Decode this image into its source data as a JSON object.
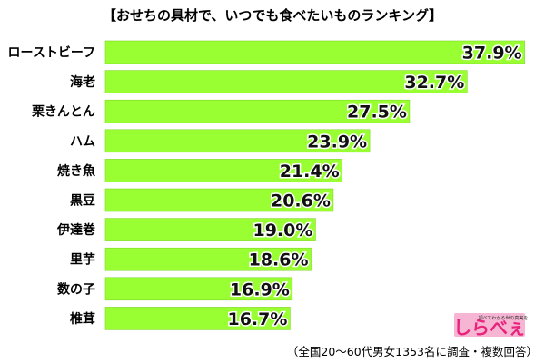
{
  "title": "【おせちの具材で、いつでも食べたいものランキング】",
  "footnote": "（全国20〜60代男女1353名に調査・複数回答）",
  "logo": {
    "text": "しらべぇ",
    "tagline": "調べてわかる世の真実を",
    "color": "#e8237b",
    "background": "#f6b6d3"
  },
  "colors": {
    "bar": "#99ff33",
    "bar_edge": "#7fd826"
  },
  "chart_data": {
    "type": "bar",
    "orientation": "horizontal",
    "title": "【おせちの具材で、いつでも食べたいものランキング】",
    "categories": [
      "ローストビーフ",
      "海老",
      "栗きんとん",
      "ハム",
      "焼き魚",
      "黒豆",
      "伊達巻",
      "里芋",
      "数の子",
      "椎茸"
    ],
    "values": [
      37.9,
      32.7,
      27.5,
      23.9,
      21.4,
      20.6,
      19.0,
      18.6,
      16.9,
      16.7
    ],
    "value_labels": [
      "37.9%",
      "32.7%",
      "27.5%",
      "23.9%",
      "21.4%",
      "20.6%",
      "19.0%",
      "18.6%",
      "16.9%",
      "16.7%"
    ],
    "unit": "%",
    "xlim": [
      0,
      39
    ],
    "grid": false,
    "legend": "none"
  }
}
